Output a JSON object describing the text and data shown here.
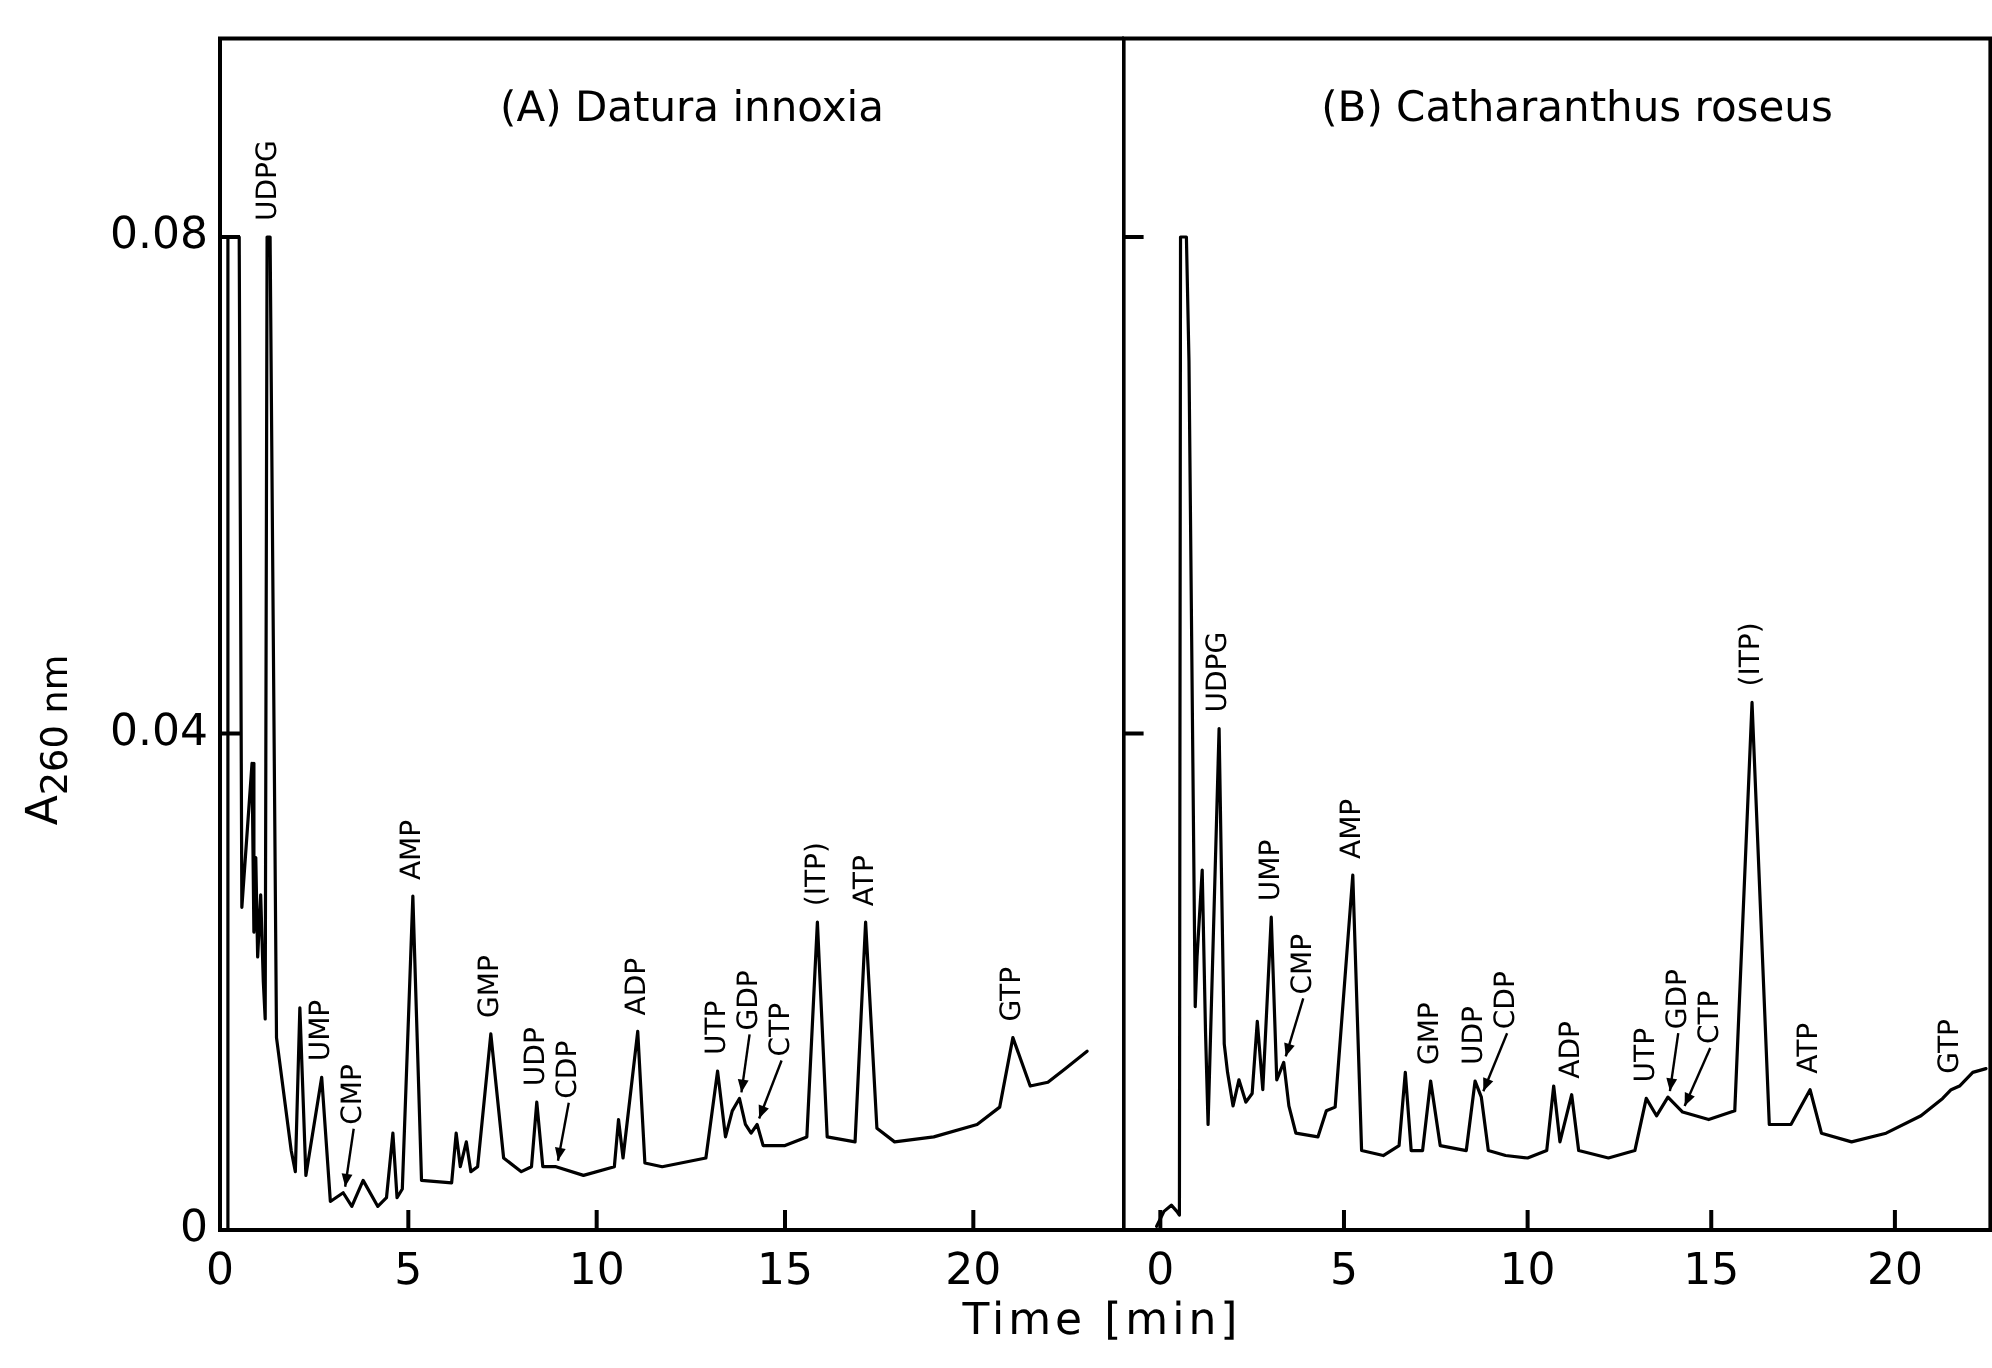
{
  "chart_data": [
    {
      "type": "line",
      "title": "(A) Datura innoxia",
      "xlabel": "Time [min]",
      "ylabel": "A$_{260 nm}$",
      "color": "#000000",
      "xlim": [
        0,
        24
      ],
      "ylim": [
        0,
        0.096
      ],
      "xticks": [
        0,
        5,
        10,
        15,
        20
      ],
      "yticks": [
        0,
        0.04,
        0.08
      ],
      "x": [
        0,
        0.2,
        0.21,
        0.51,
        0.58,
        0.85,
        0.9,
        0.95,
        1.0,
        1.08,
        1.15,
        1.2,
        1.25,
        1.33,
        1.5,
        1.89,
        2.0,
        2.12,
        2.28,
        2.7,
        2.93,
        3.27,
        3.5,
        3.8,
        4.19,
        4.42,
        4.59,
        4.7,
        4.84,
        5.12,
        5.35,
        6.15,
        6.27,
        6.38,
        6.54,
        6.66,
        6.84,
        7.19,
        7.53,
        8.0,
        8.27,
        8.41,
        8.57,
        8.92,
        9.65,
        10.47,
        10.58,
        10.7,
        11.09,
        11.28,
        11.74,
        12.9,
        13.21,
        13.42,
        13.6,
        13.79,
        13.95,
        14.1,
        14.26,
        14.42,
        15.0,
        15.58,
        15.86,
        16.12,
        16.86,
        17.14,
        17.44,
        17.91,
        18.95,
        20.1,
        20.7,
        21.05,
        21.51,
        21.98,
        22.44,
        23.02
      ],
      "values": [
        0,
        0,
        0.08,
        0.08,
        0.026,
        0.0376,
        0.024,
        0.03,
        0.022,
        0.027,
        0.02,
        0.017,
        0.08,
        0.08,
        0.0155,
        0.0064,
        0.0047,
        0.0179,
        0.0044,
        0.0123,
        0.0023,
        0.003,
        0.0019,
        0.004,
        0.0019,
        0.0026,
        0.0078,
        0.0026,
        0.0033,
        0.0269,
        0.004,
        0.0038,
        0.0078,
        0.0051,
        0.0071,
        0.0047,
        0.0051,
        0.0158,
        0.0058,
        0.0047,
        0.0051,
        0.0103,
        0.0051,
        0.0051,
        0.0044,
        0.0051,
        0.0089,
        0.0058,
        0.016,
        0.0054,
        0.0051,
        0.0058,
        0.0128,
        0.0075,
        0.0096,
        0.0106,
        0.0085,
        0.0078,
        0.0085,
        0.0068,
        0.0068,
        0.0075,
        0.0248,
        0.0075,
        0.0071,
        0.0248,
        0.0082,
        0.0071,
        0.0075,
        0.0085,
        0.0099,
        0.0155,
        0.0116,
        0.0119,
        0.013,
        0.0144
      ],
      "annotations": [
        {
          "text": "UDPG",
          "x": 1.3,
          "y": 0.08
        },
        {
          "text": "UMP",
          "x": 2.7,
          "y": 0.0123
        },
        {
          "text": "CMP",
          "x": 3.27,
          "y": 0.003
        },
        {
          "text": "AMP",
          "x": 5.12,
          "y": 0.0269
        },
        {
          "text": "GMP",
          "x": 7.19,
          "y": 0.0158
        },
        {
          "text": "UDP",
          "x": 8.41,
          "y": 0.0103
        },
        {
          "text": "CDP",
          "x": 8.92,
          "y": 0.0051
        },
        {
          "text": "ADP",
          "x": 11.09,
          "y": 0.016
        },
        {
          "text": "UTP",
          "x": 13.21,
          "y": 0.0128
        },
        {
          "text": "GDP",
          "x": 13.79,
          "y": 0.0106
        },
        {
          "text": "CTP",
          "x": 14.26,
          "y": 0.0085
        },
        {
          "text": "(ITP)",
          "x": 15.86,
          "y": 0.0248
        },
        {
          "text": "ATP",
          "x": 17.14,
          "y": 0.0248
        },
        {
          "text": "GTP",
          "x": 21.05,
          "y": 0.0155
        }
      ]
    },
    {
      "type": "line",
      "title": "(B) Catharanthus roseus",
      "color": "#000000",
      "tick_labels": "x",
      "xlim": [
        -1,
        22.6
      ],
      "ylim": [
        0,
        0.096
      ],
      "xticks": [
        0,
        5,
        10,
        15,
        20
      ],
      "yticks": [
        0,
        0.04,
        0.08
      ],
      "x": [
        -0.1,
        0.1,
        0.3,
        0.45,
        0.52,
        0.55,
        0.71,
        0.78,
        0.95,
        1.0,
        1.14,
        1.23,
        1.3,
        1.6,
        1.74,
        1.83,
        1.98,
        2.14,
        2.33,
        2.5,
        2.64,
        2.79,
        3.02,
        3.17,
        3.36,
        3.5,
        3.69,
        4.29,
        4.52,
        4.76,
        5.24,
        5.48,
        6.07,
        6.5,
        6.67,
        6.83,
        7.14,
        7.36,
        7.62,
        8.33,
        8.57,
        8.74,
        8.93,
        9.4,
        10.0,
        10.52,
        10.71,
        10.88,
        11.2,
        11.39,
        12.2,
        12.92,
        13.23,
        13.51,
        13.82,
        14.22,
        14.93,
        15.64,
        16.11,
        16.58,
        17.17,
        17.69,
        18.0,
        18.82,
        19.76,
        20.71,
        21.3,
        21.53,
        21.76,
        22.12,
        22.48
      ],
      "values": [
        0.0003,
        0.0015,
        0.002,
        0.0015,
        0.0012,
        0.08,
        0.08,
        0.07,
        0.018,
        0.022,
        0.029,
        0.016,
        0.0085,
        0.0404,
        0.015,
        0.0127,
        0.01,
        0.0121,
        0.0103,
        0.011,
        0.0168,
        0.0113,
        0.0252,
        0.0121,
        0.0135,
        0.01,
        0.0078,
        0.0075,
        0.0096,
        0.0099,
        0.0286,
        0.0064,
        0.006,
        0.0068,
        0.0127,
        0.0064,
        0.0064,
        0.012,
        0.0068,
        0.0064,
        0.012,
        0.0107,
        0.0064,
        0.006,
        0.0058,
        0.0064,
        0.0116,
        0.0071,
        0.0109,
        0.0064,
        0.0058,
        0.0064,
        0.0106,
        0.0092,
        0.0107,
        0.0095,
        0.0089,
        0.0096,
        0.0425,
        0.0085,
        0.0085,
        0.0113,
        0.0078,
        0.0071,
        0.0078,
        0.0092,
        0.0106,
        0.0113,
        0.0116,
        0.0127,
        0.013
      ],
      "annotations": [
        {
          "text": "UDPG",
          "x": 1.6,
          "y": 0.0404
        },
        {
          "text": "UMP",
          "x": 3.02,
          "y": 0.0252
        },
        {
          "text": "CMP",
          "x": 3.36,
          "y": 0.0135
        },
        {
          "text": "AMP",
          "x": 5.24,
          "y": 0.0286
        },
        {
          "text": "GMP",
          "x": 7.36,
          "y": 0.012
        },
        {
          "text": "UDP",
          "x": 8.57,
          "y": 0.012
        },
        {
          "text": "CDP",
          "x": 8.74,
          "y": 0.0107
        },
        {
          "text": "ADP",
          "x": 11.2,
          "y": 0.0109
        },
        {
          "text": "UTP",
          "x": 13.23,
          "y": 0.0106
        },
        {
          "text": "GDP",
          "x": 13.82,
          "y": 0.0107
        },
        {
          "text": "CTP",
          "x": 14.22,
          "y": 0.0095
        },
        {
          "text": "(ITP)",
          "x": 16.11,
          "y": 0.0425
        },
        {
          "text": "ATP",
          "x": 17.69,
          "y": 0.0113
        },
        {
          "text": "GTP",
          "x": 21.53,
          "y": 0.0113
        }
      ]
    }
  ]
}
